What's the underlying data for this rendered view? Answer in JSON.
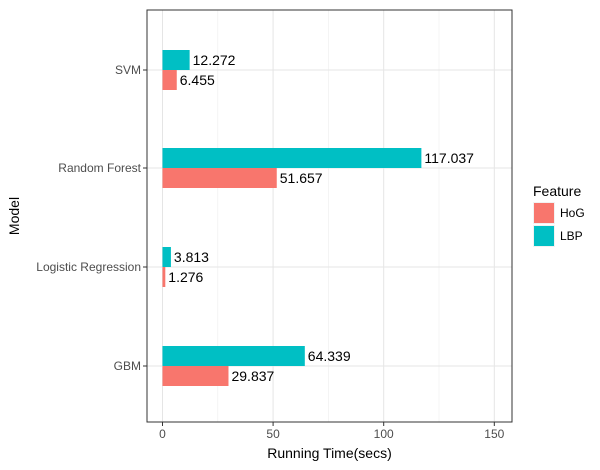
{
  "chart_data": {
    "type": "bar",
    "orientation": "horizontal",
    "title": "",
    "xlabel": "Running Time(secs)",
    "ylabel": "Model",
    "xlim": [
      -7,
      158
    ],
    "xticks": [
      0,
      50,
      100,
      150
    ],
    "xtick_labels": [
      "0",
      "50",
      "100",
      "150"
    ],
    "grid": true,
    "legend_position": "right",
    "categories": [
      "SVM",
      "Random Forest",
      "Logistic Regression",
      "GBM"
    ],
    "series": [
      {
        "name": "LBP",
        "color": "#00bfc4",
        "values": [
          12.272,
          117.037,
          3.813,
          64.339
        ]
      },
      {
        "name": "HoG",
        "color": "#f8766d",
        "values": [
          6.455,
          51.657,
          1.276,
          29.837
        ]
      }
    ],
    "data_labels": {
      "LBP": [
        "12.272",
        "117.037",
        "3.813",
        "64.339"
      ],
      "HoG": [
        "6.455",
        "51.657",
        "1.276",
        "29.837"
      ]
    },
    "legend": {
      "title": "Feature",
      "items": [
        {
          "label": "HoG",
          "color": "#f8766d"
        },
        {
          "label": "LBP",
          "color": "#00bfc4"
        }
      ]
    }
  }
}
